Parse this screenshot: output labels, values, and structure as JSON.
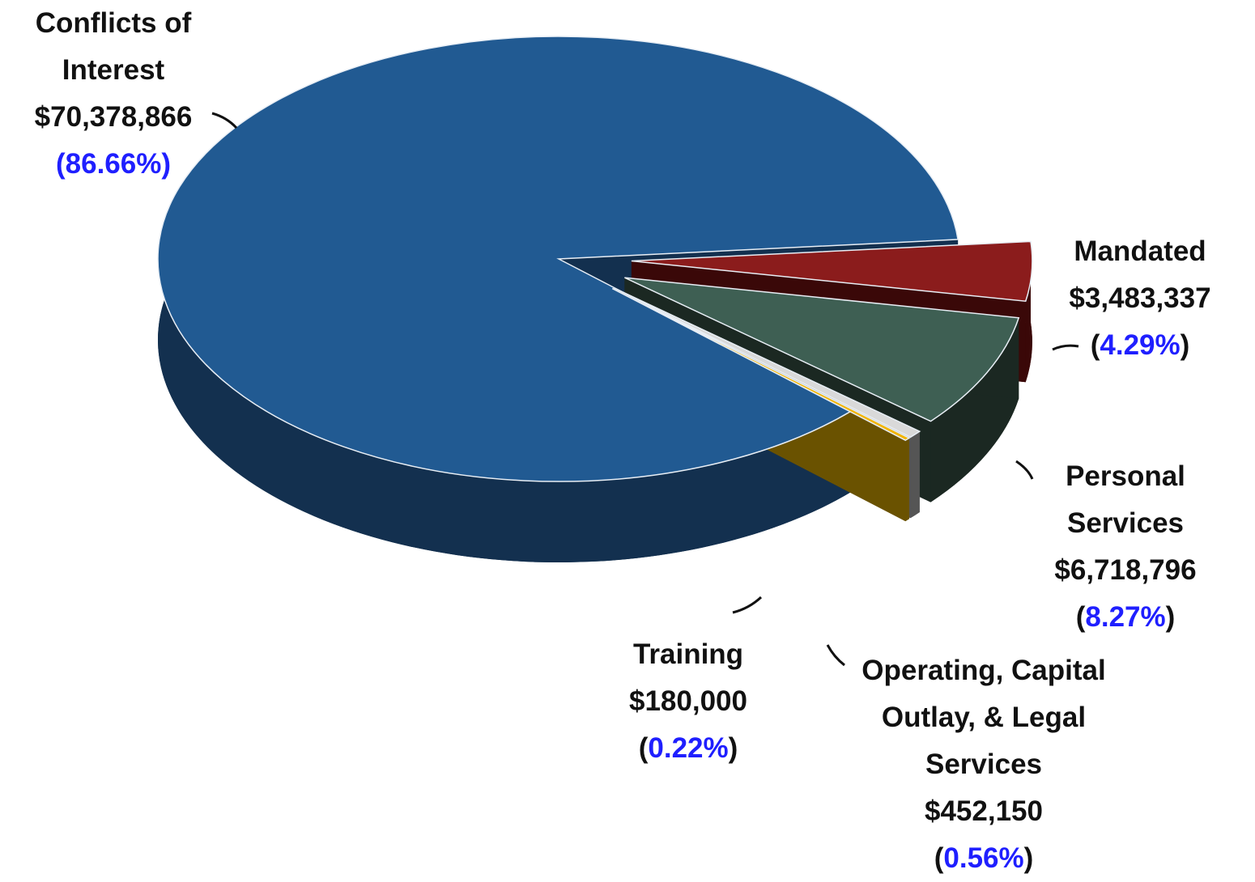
{
  "chart_data": {
    "type": "pie",
    "categories": [
      "Conflicts of Interest",
      "Mandated",
      "Personal Services",
      "Operating, Capital Outlay, & Legal Services",
      "Training"
    ],
    "values": [
      70378866,
      3483337,
      6718796,
      452150,
      180000
    ],
    "value_labels": [
      "$70,378,866",
      "$3,483,337",
      "$6,718,796",
      "$452,150",
      "$180,000"
    ],
    "percent_labels": [
      "86.66%",
      "4.29%",
      "8.27%",
      "0.56%",
      "0.22%"
    ],
    "colors": [
      "#215a92",
      "#8b1c1c",
      "#3e5f53",
      "#d9d9d9",
      "#f2b500"
    ],
    "side_colors": [
      "#13304f",
      "#3a0808",
      "#1b2822",
      "#555555",
      "#6a5200"
    ]
  }
}
